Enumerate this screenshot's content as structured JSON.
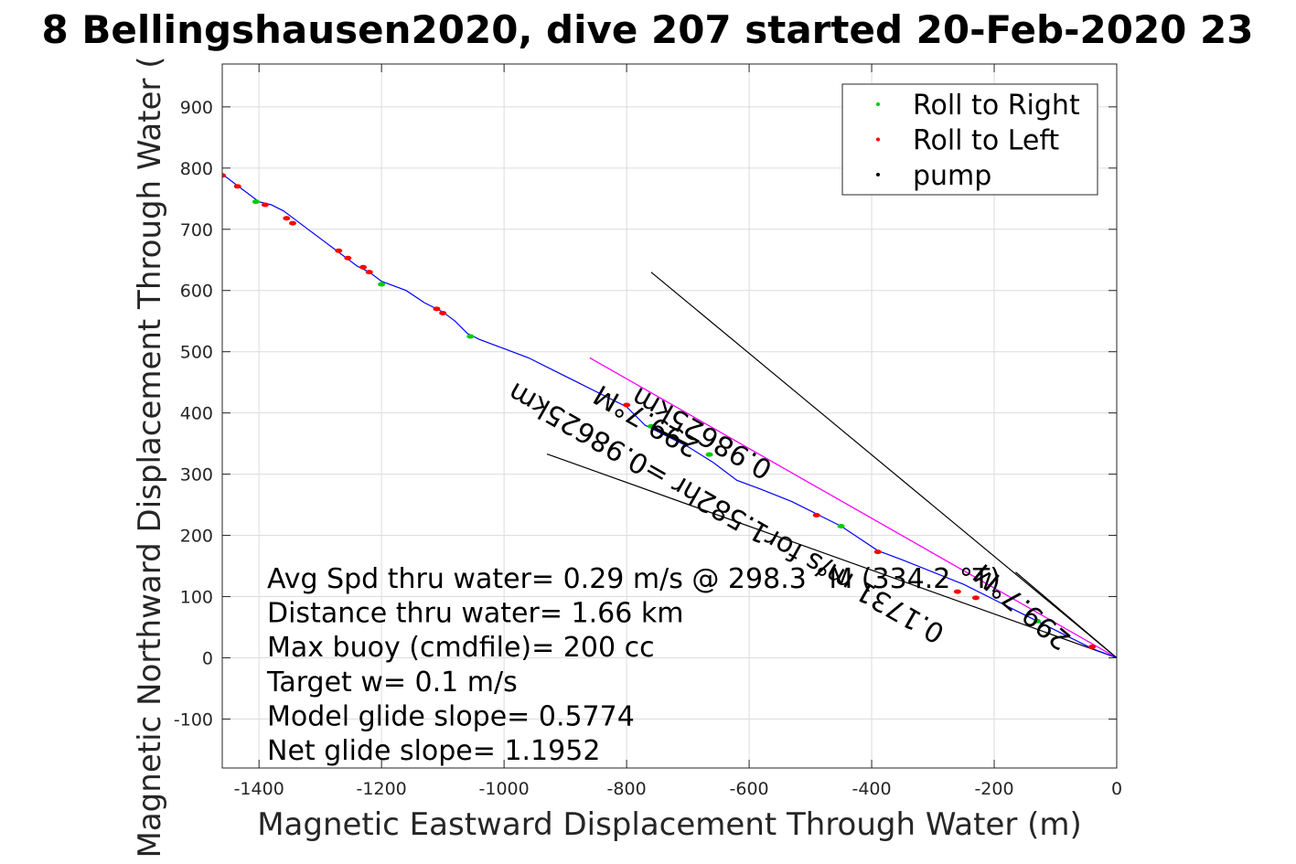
{
  "chart_data": {
    "type": "line",
    "title": "8 Bellingshausen2020, dive 207 started 20-Feb-2020 23",
    "xlabel": "Magnetic Eastward Displacement Through Water (m)",
    "ylabel": "Magnetic Northward Displacement Through Water (",
    "xlim": [
      -1460,
      0
    ],
    "ylim": [
      -180,
      970
    ],
    "xticks": [
      -1400,
      -1200,
      -1000,
      -800,
      -600,
      -400,
      -200,
      0
    ],
    "yticks": [
      -100,
      0,
      100,
      200,
      300,
      400,
      500,
      600,
      700,
      800,
      900
    ],
    "grid": true,
    "legend": {
      "placement": "top-right",
      "entries": [
        "Roll to Right",
        "Roll to Left",
        "pump"
      ]
    },
    "colors": {
      "track": "#0000ff",
      "roll_right": "#00cc00",
      "roll_left": "#ff0000",
      "pump": "#000000",
      "heading_line": "#ff00ff",
      "line": "#000000"
    },
    "track": {
      "x": [
        0,
        -40,
        -100,
        -160,
        -200,
        -250,
        -300,
        -350,
        -390,
        -420,
        -450,
        -490,
        -530,
        -580,
        -620,
        -660,
        -700,
        -740,
        -770,
        -800,
        -840,
        -880,
        -920,
        -960,
        -1000,
        -1040,
        -1060,
        -1080,
        -1100,
        -1130,
        -1160,
        -1200,
        -1220,
        -1240,
        -1260,
        -1280,
        -1300,
        -1320,
        -1340,
        -1360,
        -1380,
        -1400,
        -1420,
        -1440,
        -1460
      ],
      "y": [
        0,
        15,
        45,
        75,
        95,
        120,
        140,
        160,
        175,
        195,
        215,
        235,
        255,
        275,
        290,
        320,
        345,
        365,
        380,
        410,
        430,
        450,
        470,
        490,
        505,
        520,
        530,
        550,
        565,
        580,
        600,
        615,
        630,
        640,
        655,
        670,
        685,
        700,
        715,
        730,
        740,
        745,
        760,
        775,
        790
      ]
    },
    "roll_right": {
      "x": [
        -1405,
        -1200,
        -1055,
        -760,
        -665,
        -450,
        -130
      ],
      "y": [
        745,
        610,
        525,
        378,
        332,
        215,
        60
      ]
    },
    "roll_left": {
      "x": [
        -1460,
        -1435,
        -1390,
        -1355,
        -1345,
        -1270,
        -1255,
        -1230,
        -1220,
        -1110,
        -1100,
        -800,
        -490,
        -390,
        -260,
        -230,
        -40
      ],
      "y": [
        788,
        770,
        740,
        718,
        710,
        665,
        653,
        638,
        630,
        570,
        563,
        413,
        233,
        173,
        108,
        98,
        18
      ]
    },
    "pump": {
      "x": [
        -760,
        -700
      ],
      "y": [
        378,
        348
      ]
    },
    "heading_line": {
      "x": [
        0,
        -860
      ],
      "y": [
        0,
        490
      ]
    },
    "lines": [
      {
        "x": [
          0,
          -760
        ],
        "y": [
          0,
          630
        ]
      },
      {
        "x": [
          0,
          -930
        ],
        "y": [
          0,
          333
        ]
      },
      {
        "x": [
          0,
          -165
        ],
        "y": [
          0,
          140
        ]
      }
    ],
    "annotations": [
      {
        "text": "299.7°M",
        "x": -760,
        "y": 400,
        "angle": -150.3
      },
      {
        "text": "0.98625km",
        "x": -670,
        "y": 380,
        "angle": -150.3
      },
      {
        "text": "299.7°M",
        "x": -145,
        "y": 95,
        "angle": -140
      },
      {
        "text": "0.1731 m/s for1.582hr =0.98625km",
        "x": -630,
        "y": 250,
        "angle": -150.3
      }
    ],
    "stats": [
      "Avg Spd thru water=  0.29 m/s @ 298.3 °M (334.2 °T)",
      "Distance thru water=  1.66 km",
      "Max buoy (cmdfile)= 200 cc",
      "Target w= 0.1 m/s",
      "Model glide slope= 0.5774",
      "Net glide slope= 1.1952"
    ]
  }
}
